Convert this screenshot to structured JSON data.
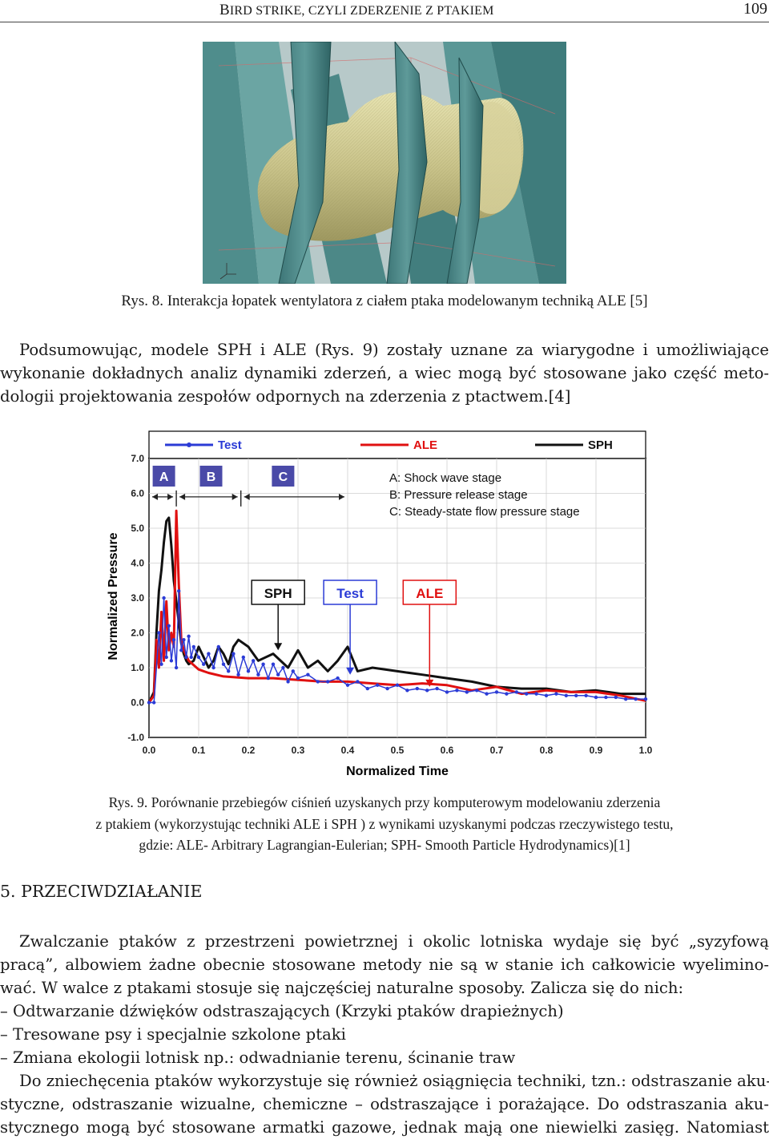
{
  "header": {
    "title_parts": [
      {
        "big": "B",
        "small": "IRD STRIKE, CZYLI ZDERZENIE Z PTAKIEM"
      }
    ],
    "page_number": "109"
  },
  "figure8": {
    "caption": "Rys. 8. Interakcja łopatek wentylatora z ciałem ptaka modelowanym techniką ALE [5]"
  },
  "paragraph1": {
    "lines": [
      "Podsumowując, modele SPH i ALE (Rys. 9) zostały uznane za wiarygodne i umożliwiające",
      "wykonanie dokładnych analiz dynamiki zderzeń, a wiec mogą być stosowane jako część meto-",
      "dologii projektowania zespołów odpornych na zderzenia z ptactwem.[4]"
    ]
  },
  "figure9": {
    "caption_lines": [
      "Rys. 9. Porównanie przebiegów ciśnień uzyskanych przy komputerowym modelowaniu zderzenia",
      "z ptakiem (wykorzystując techniki ALE i SPH ) z wynikami uzyskanymi podczas rzeczywistego testu,",
      "gdzie: ALE- Arbitrary Lagrangian-Eulerian; SPH- Smooth Particle Hydrodynamics)[1]"
    ]
  },
  "chart_data": {
    "type": "line",
    "xlabel": "Normalized Time",
    "ylabel": "Normalized Pressure",
    "xlim": [
      0.0,
      1.0
    ],
    "ylim": [
      -1.0,
      7.0
    ],
    "x_ticks": [
      "0.0",
      "0.1",
      "0.2",
      "0.3",
      "0.4",
      "0.5",
      "0.6",
      "0.7",
      "0.8",
      "0.9",
      "1.0"
    ],
    "y_ticks": [
      "7.0",
      "6.0",
      "5.0",
      "4.0",
      "3.0",
      "2.0",
      "1.0",
      "0.0",
      "-1.0"
    ],
    "legend": {
      "position": "top",
      "entries": [
        "Test",
        "ALE",
        "SPH"
      ]
    },
    "stage_boxes": [
      "A",
      "B",
      "C"
    ],
    "stage_notes": [
      "A: Shock wave stage",
      "B: Pressure release stage",
      "C: Steady-state flow pressure stage"
    ],
    "callouts": [
      "SPH",
      "Test",
      "ALE"
    ],
    "colors": {
      "Test": "#2b3bd6",
      "ALE": "#e01010",
      "SPH": "#111111",
      "stage_box": "#4a4aa8"
    },
    "series": [
      {
        "name": "Test",
        "x": [
          0.0,
          0.01,
          0.02,
          0.025,
          0.03,
          0.035,
          0.04,
          0.045,
          0.05,
          0.055,
          0.06,
          0.065,
          0.07,
          0.075,
          0.08,
          0.085,
          0.09,
          0.1,
          0.11,
          0.12,
          0.13,
          0.14,
          0.15,
          0.16,
          0.17,
          0.18,
          0.19,
          0.2,
          0.21,
          0.22,
          0.23,
          0.24,
          0.25,
          0.26,
          0.27,
          0.28,
          0.29,
          0.3,
          0.32,
          0.34,
          0.36,
          0.38,
          0.4,
          0.42,
          0.44,
          0.46,
          0.48,
          0.5,
          0.52,
          0.54,
          0.56,
          0.58,
          0.6,
          0.62,
          0.64,
          0.66,
          0.68,
          0.7,
          0.72,
          0.74,
          0.76,
          0.78,
          0.8,
          0.82,
          0.84,
          0.86,
          0.88,
          0.9,
          0.92,
          0.94,
          0.96,
          0.98,
          1.0
        ],
        "y": [
          0.0,
          0.0,
          2.0,
          1.1,
          3.0,
          1.3,
          2.2,
          1.2,
          1.8,
          1.0,
          3.2,
          1.5,
          1.8,
          1.3,
          1.9,
          1.3,
          1.6,
          1.3,
          1.1,
          1.4,
          1.0,
          1.6,
          1.1,
          0.9,
          1.4,
          0.8,
          1.3,
          0.9,
          1.2,
          0.8,
          1.1,
          0.7,
          1.1,
          0.8,
          1.0,
          0.6,
          0.9,
          0.7,
          0.8,
          0.6,
          0.6,
          0.7,
          0.5,
          0.6,
          0.4,
          0.5,
          0.4,
          0.5,
          0.35,
          0.4,
          0.35,
          0.4,
          0.3,
          0.35,
          0.3,
          0.35,
          0.25,
          0.3,
          0.25,
          0.3,
          0.25,
          0.25,
          0.2,
          0.25,
          0.2,
          0.2,
          0.2,
          0.15,
          0.15,
          0.15,
          0.1,
          0.1,
          0.1
        ]
      },
      {
        "name": "ALE",
        "x": [
          0.0,
          0.01,
          0.015,
          0.02,
          0.025,
          0.03,
          0.035,
          0.04,
          0.045,
          0.05,
          0.055,
          0.06,
          0.065,
          0.07,
          0.08,
          0.1,
          0.12,
          0.15,
          0.2,
          0.25,
          0.3,
          0.35,
          0.4,
          0.45,
          0.5,
          0.55,
          0.6,
          0.65,
          0.7,
          0.75,
          0.8,
          0.85,
          0.9,
          0.95,
          1.0
        ],
        "y": [
          0.0,
          0.2,
          1.8,
          1.0,
          2.6,
          1.2,
          2.9,
          1.5,
          2.0,
          1.6,
          5.5,
          3.4,
          1.8,
          1.5,
          1.2,
          0.95,
          0.85,
          0.75,
          0.7,
          0.7,
          0.65,
          0.6,
          0.6,
          0.55,
          0.5,
          0.55,
          0.5,
          0.35,
          0.45,
          0.25,
          0.35,
          0.3,
          0.3,
          0.2,
          0.05
        ]
      },
      {
        "name": "SPH",
        "x": [
          0.0,
          0.01,
          0.015,
          0.02,
          0.025,
          0.03,
          0.035,
          0.04,
          0.045,
          0.05,
          0.055,
          0.06,
          0.065,
          0.07,
          0.075,
          0.08,
          0.09,
          0.1,
          0.11,
          0.12,
          0.13,
          0.14,
          0.15,
          0.16,
          0.17,
          0.18,
          0.2,
          0.22,
          0.25,
          0.28,
          0.3,
          0.32,
          0.34,
          0.36,
          0.38,
          0.4,
          0.42,
          0.45,
          0.5,
          0.55,
          0.6,
          0.65,
          0.7,
          0.75,
          0.8,
          0.85,
          0.9,
          0.95,
          1.0
        ],
        "y": [
          0.0,
          0.3,
          2.0,
          3.2,
          3.8,
          4.6,
          5.2,
          5.3,
          4.5,
          3.5,
          2.9,
          2.3,
          1.7,
          1.4,
          1.2,
          1.1,
          1.2,
          1.6,
          1.3,
          1.0,
          1.2,
          1.6,
          1.4,
          1.1,
          1.6,
          1.8,
          1.6,
          1.2,
          1.4,
          1.0,
          1.5,
          1.0,
          1.2,
          0.9,
          1.2,
          1.6,
          0.9,
          1.0,
          0.9,
          0.8,
          0.7,
          0.6,
          0.45,
          0.4,
          0.4,
          0.3,
          0.35,
          0.25,
          0.25
        ]
      }
    ]
  },
  "section": {
    "heading": "5. PRZECIWDZIAŁANIE"
  },
  "paragraph2": {
    "lines": [
      "Zwalczanie ptaków z przestrzeni powietrznej i okolic lotniska wydaje się być „syzyfową",
      "pracą”, albowiem żadne obecnie stosowane metody nie są w stanie ich całkowicie wyelimino-",
      "wać. W walce z ptakami stosuje się najczęściej naturalne sposoby. Zalicza się do nich:",
      "– Odtwarzanie dźwięków odstraszających (Krzyki ptaków drapieżnych)",
      "– Tresowane psy i specjalnie szkolone ptaki",
      "– Zmiana ekologii lotnisk np.: odwadnianie terenu, ścinanie traw",
      "Do zniechęcenia ptaków wykorzystuje się również osiągnięcia techniki, tzn.: odstraszanie aku-",
      "styczne, odstraszanie wizualne, chemiczne – odstraszające i porażające. Do odstraszania aku-",
      "stycznego mogą być stosowane armatki gazowe, jednak mają one niewielki zasięg. Natomiast"
    ]
  }
}
